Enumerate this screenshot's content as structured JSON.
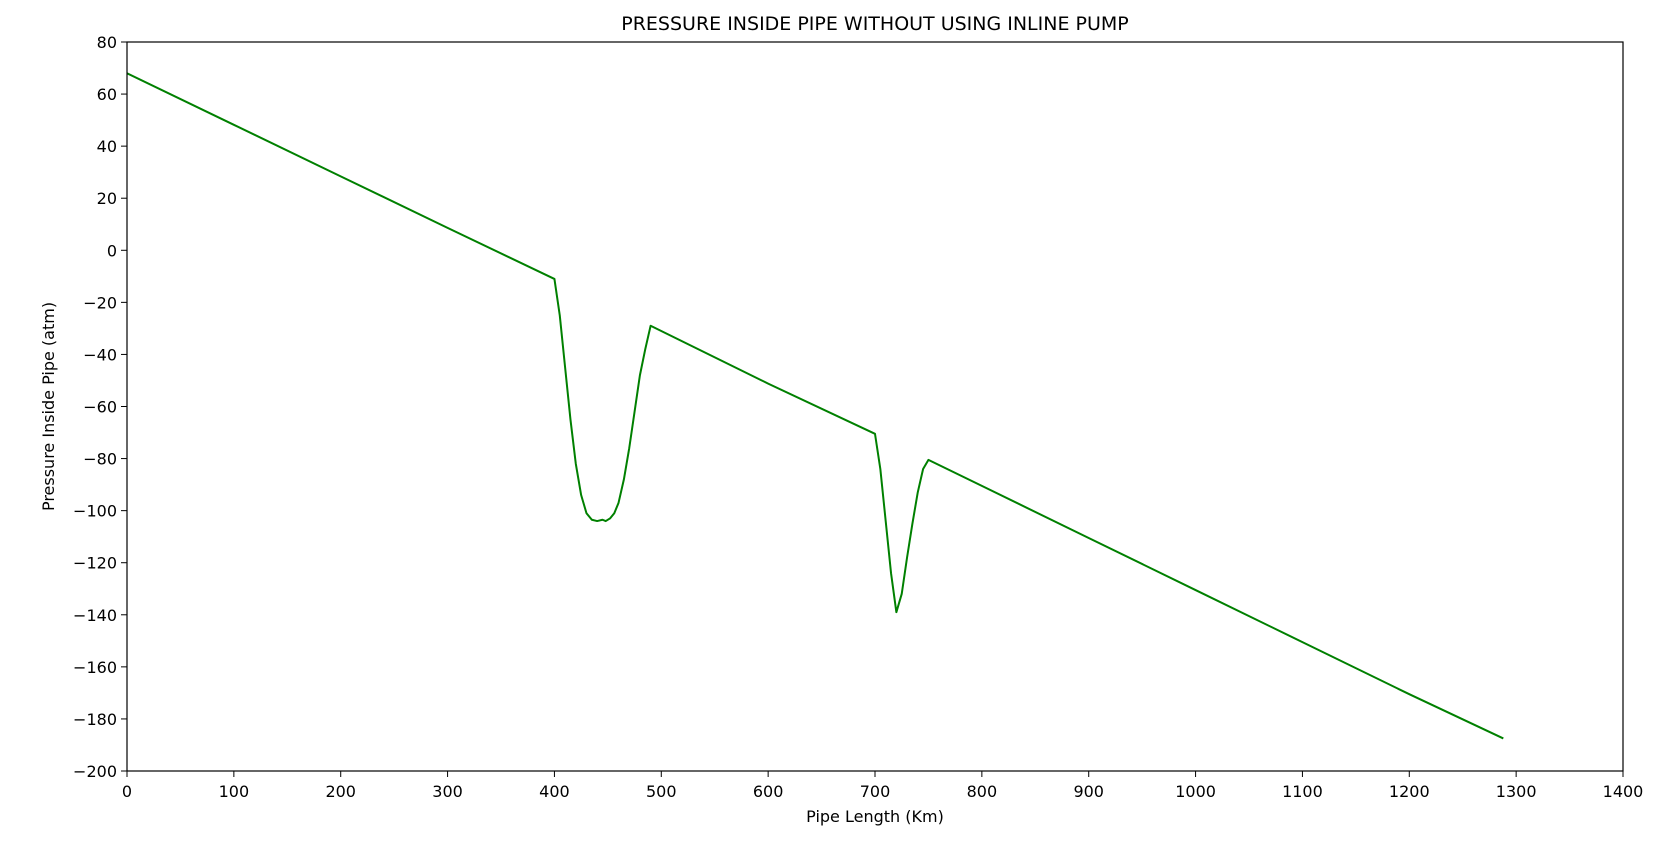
{
  "chart_data": {
    "type": "line",
    "title": "PRESSURE INSIDE PIPE WITHOUT USING INLINE PUMP",
    "xlabel": "Pipe Length (Km)",
    "ylabel": "Pressure Inside Pipe (atm)",
    "xlim": [
      0,
      1400
    ],
    "ylim": [
      -200,
      80
    ],
    "xticks": [
      0,
      100,
      200,
      300,
      400,
      500,
      600,
      700,
      800,
      900,
      1000,
      1100,
      1200,
      1300,
      1400
    ],
    "yticks": [
      80,
      60,
      40,
      20,
      0,
      -20,
      -40,
      -60,
      -80,
      -100,
      -120,
      -140,
      -160,
      -180,
      -200
    ],
    "ytick_labels": [
      "80",
      "60",
      "40",
      "20",
      "0",
      "−20",
      "−40",
      "−60",
      "−80",
      "−100",
      "−120",
      "−140",
      "−160",
      "−180",
      "−200"
    ],
    "grid": false,
    "legend": "none",
    "line_color": "#008000",
    "series": [
      {
        "x": [
          0,
          100,
          200,
          300,
          400,
          405,
          410,
          415,
          420,
          425,
          430,
          435,
          440,
          445,
          448,
          452,
          456,
          460,
          465,
          470,
          475,
          480,
          485,
          490,
          600,
          700,
          705,
          710,
          715,
          720,
          725,
          730,
          735,
          740,
          745,
          750,
          800,
          900,
          1000,
          1100,
          1200,
          1288
        ],
        "y": [
          68,
          48.2,
          28.4,
          8.6,
          -11,
          -25,
          -45,
          -65,
          -82,
          -94,
          -101,
          -103.5,
          -104,
          -103.5,
          -104,
          -103,
          -101,
          -97,
          -88,
          -76,
          -62,
          -48,
          -38,
          -29,
          -51.2,
          -70.5,
          -84,
          -104,
          -124,
          -139,
          -132,
          -118,
          -105,
          -93,
          -84,
          -80.5,
          -90.5,
          -110.5,
          -130.5,
          -150.5,
          -170.5,
          -187.5
        ]
      }
    ]
  }
}
